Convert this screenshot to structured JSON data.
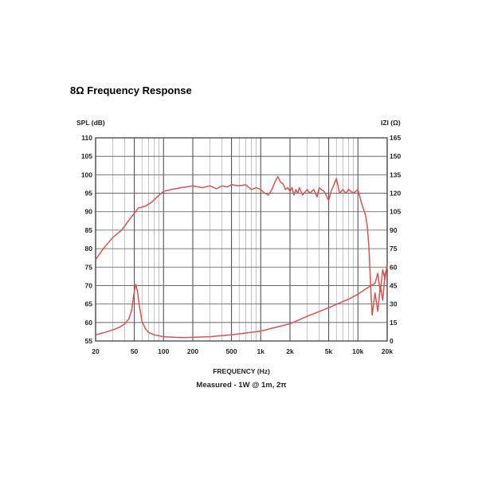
{
  "title": "8Ω Frequency Response",
  "chart_data": {
    "type": "line",
    "xscale": "log",
    "xlabel": "FREQUENCY (Hz)",
    "caption": "Measured - 1W @ 1m, 2π",
    "ylabel_left": "SPL (dB)",
    "ylabel_right": "IZI (Ω)",
    "xlim": [
      20,
      20000
    ],
    "ylim_left": [
      55,
      110
    ],
    "ylim_right": [
      0,
      165
    ],
    "x_ticks": [
      {
        "value": 20,
        "label": "20"
      },
      {
        "value": 50,
        "label": "50"
      },
      {
        "value": 100,
        "label": "100"
      },
      {
        "value": 200,
        "label": "200"
      },
      {
        "value": 500,
        "label": "500"
      },
      {
        "value": 1000,
        "label": "1k"
      },
      {
        "value": 2000,
        "label": "2k"
      },
      {
        "value": 5000,
        "label": "5k"
      },
      {
        "value": 10000,
        "label": "10k"
      },
      {
        "value": 20000,
        "label": "20k"
      }
    ],
    "y_ticks_left": [
      "55",
      "60",
      "65",
      "70",
      "75",
      "80",
      "85",
      "90",
      "95",
      "100",
      "105",
      "110"
    ],
    "y_ticks_right": [
      "0",
      "15",
      "30",
      "45",
      "60",
      "75",
      "90",
      "105",
      "120",
      "135",
      "150",
      "165"
    ],
    "grid": true,
    "series": [
      {
        "axis": "left",
        "color": "#d9534f",
        "x": [
          20,
          24,
          30,
          37,
          45,
          55,
          65,
          75,
          90,
          100,
          120,
          150,
          180,
          200,
          250,
          300,
          350,
          400,
          450,
          500,
          600,
          700,
          800,
          900,
          1000,
          1100,
          1200,
          1300,
          1400,
          1500,
          1600,
          1700,
          1800,
          1900,
          2000,
          2100,
          2200,
          2300,
          2400,
          2500,
          2700,
          3000,
          3200,
          3500,
          3800,
          4000,
          4200,
          4500,
          4800,
          5000,
          5300,
          5600,
          6000,
          6500,
          7000,
          7500,
          8000,
          9000,
          10000,
          11000,
          12000,
          12500,
          13000,
          13500,
          14000,
          15000,
          16000,
          17000,
          18000,
          19000,
          20000
        ],
        "y": [
          77,
          80,
          83,
          85,
          88,
          91,
          91.5,
          92.5,
          94.5,
          95.5,
          96,
          96.5,
          96.8,
          97,
          96.5,
          97,
          96.2,
          97,
          96.7,
          97.3,
          97,
          97.3,
          96,
          96.5,
          96,
          95,
          94.5,
          96,
          98,
          99.5,
          98,
          97.5,
          96,
          96.5,
          95.5,
          96.5,
          94.5,
          96,
          95,
          96.5,
          94.5,
          96,
          95,
          96,
          94,
          96.5,
          96,
          95.5,
          94,
          93,
          95.5,
          97,
          99,
          95,
          96,
          95,
          96,
          95,
          96,
          92,
          89,
          86,
          80,
          70,
          62,
          68,
          63,
          70,
          66,
          73,
          75
        ]
      },
      {
        "axis": "right",
        "color": "#d9534f",
        "x": [
          20,
          25,
          30,
          35,
          40,
          44,
          47,
          50,
          52,
          54,
          56,
          60,
          65,
          70,
          80,
          100,
          130,
          160,
          200,
          300,
          500,
          1000,
          2000,
          3000,
          5000,
          8000,
          10000,
          13000,
          15000,
          16000,
          17000,
          18000,
          19000,
          20000
        ],
        "y": [
          5,
          7,
          9,
          11,
          14,
          18,
          25,
          40,
          46,
          40,
          30,
          16,
          10,
          7,
          5,
          3.5,
          3,
          2.8,
          3,
          3.5,
          5,
          8,
          14,
          20,
          27,
          34,
          38,
          44,
          47,
          55,
          40,
          58,
          50,
          63
        ]
      }
    ]
  }
}
